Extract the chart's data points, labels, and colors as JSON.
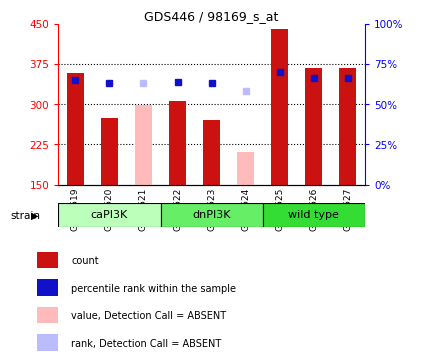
{
  "title": "GDS446 / 98169_s_at",
  "samples": [
    "GSM8519",
    "GSM8520",
    "GSM8521",
    "GSM8522",
    "GSM8523",
    "GSM8524",
    "GSM8525",
    "GSM8526",
    "GSM8527"
  ],
  "count_values": [
    358,
    275,
    null,
    305,
    270,
    null,
    440,
    368,
    368
  ],
  "count_absent_values": [
    null,
    null,
    298,
    null,
    null,
    210,
    null,
    null,
    null
  ],
  "rank_values": [
    65,
    63,
    null,
    64,
    63,
    null,
    70,
    66,
    66
  ],
  "rank_absent_values": [
    null,
    null,
    63,
    null,
    null,
    58,
    null,
    null,
    null
  ],
  "ylim_left": [
    150,
    450
  ],
  "ylim_right": [
    0,
    100
  ],
  "yticks_left": [
    150,
    225,
    300,
    375,
    450
  ],
  "yticks_right": [
    0,
    25,
    50,
    75,
    100
  ],
  "color_count": "#cc1111",
  "color_rank": "#1111cc",
  "color_count_absent": "#ffbbbb",
  "color_rank_absent": "#bbbbff",
  "grid_lines": [
    225,
    300,
    375
  ],
  "group_names": [
    "caPI3K",
    "dnPI3K",
    "wild type"
  ],
  "group_colors": [
    "#bbffbb",
    "#66ee66",
    "#33dd33"
  ],
  "group_starts": [
    0,
    3,
    6
  ],
  "group_ends": [
    3,
    6,
    9
  ],
  "legend_items": [
    {
      "label": "count",
      "color": "#cc1111"
    },
    {
      "label": "percentile rank within the sample",
      "color": "#1111cc"
    },
    {
      "label": "value, Detection Call = ABSENT",
      "color": "#ffbbbb"
    },
    {
      "label": "rank, Detection Call = ABSENT",
      "color": "#bbbbff"
    }
  ]
}
